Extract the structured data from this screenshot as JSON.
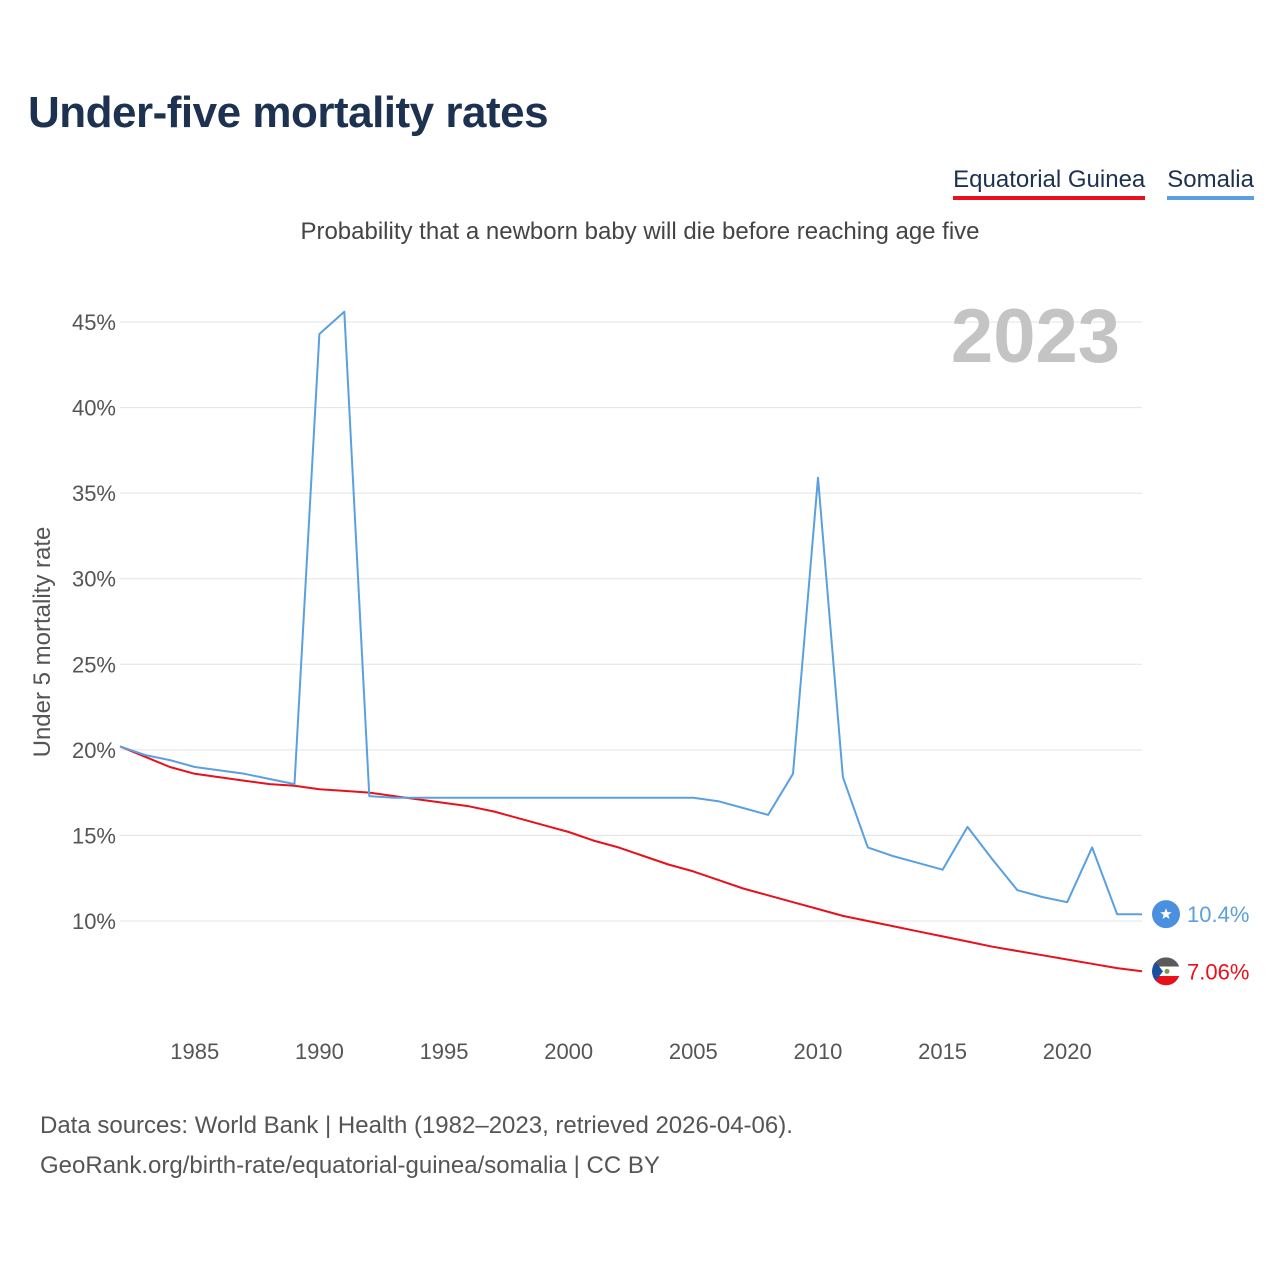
{
  "title": "Under-five mortality rates",
  "subtitle": "Probability that a newborn baby will die before reaching age five",
  "legend": [
    {
      "name": "Equatorial Guinea",
      "color": "#e8101a"
    },
    {
      "name": "Somalia",
      "color": "#5aa0e0"
    }
  ],
  "source": {
    "line1": "Data sources: World Bank | Health (1982–2023, retrieved 2026-04-06).",
    "line2": "GeoRank.org/birth-rate/equatorial-guinea/somalia | CC BY"
  },
  "chart_data": {
    "type": "line",
    "title": "Under-five mortality rates",
    "subtitle": "Probability that a newborn baby will die before reaching age five",
    "ylabel": "Under 5 mortality rate",
    "xlabel": "",
    "year_label": "2023",
    "xlim": [
      1982,
      2023
    ],
    "ylim": [
      5,
      46
    ],
    "y_ticks": [
      10,
      15,
      20,
      25,
      30,
      35,
      40,
      45
    ],
    "y_tick_labels": [
      "10%",
      "15%",
      "20%",
      "25%",
      "30%",
      "35%",
      "40%",
      "45%"
    ],
    "x_ticks": [
      1985,
      1990,
      1995,
      2000,
      2005,
      2010,
      2015,
      2020
    ],
    "x_tick_labels": [
      "1985",
      "1990",
      "1995",
      "2000",
      "2005",
      "2010",
      "2015",
      "2020"
    ],
    "grid": true,
    "x": [
      1982,
      1983,
      1984,
      1985,
      1986,
      1987,
      1988,
      1989,
      1990,
      1991,
      1992,
      1993,
      1994,
      1995,
      1996,
      1997,
      1998,
      1999,
      2000,
      2001,
      2002,
      2003,
      2004,
      2005,
      2006,
      2007,
      2008,
      2009,
      2010,
      2011,
      2012,
      2013,
      2014,
      2015,
      2016,
      2017,
      2018,
      2019,
      2020,
      2021,
      2022,
      2023
    ],
    "series": [
      {
        "name": "Equatorial Guinea",
        "color": "#e8101a",
        "end_label": "7.06%",
        "values": [
          20.2,
          19.6,
          19.0,
          18.6,
          18.4,
          18.2,
          18.0,
          17.9,
          17.7,
          17.6,
          17.5,
          17.3,
          17.1,
          16.9,
          16.7,
          16.4,
          16.0,
          15.6,
          15.2,
          14.7,
          14.3,
          13.8,
          13.3,
          12.9,
          12.4,
          11.9,
          11.5,
          11.1,
          10.7,
          10.3,
          10.0,
          9.7,
          9.4,
          9.1,
          8.8,
          8.5,
          8.25,
          8.0,
          7.75,
          7.5,
          7.25,
          7.06
        ]
      },
      {
        "name": "Somalia",
        "color": "#5aa0e0",
        "end_label": "10.4%",
        "values": [
          20.2,
          19.7,
          19.4,
          19.0,
          18.8,
          18.6,
          18.3,
          18.0,
          44.3,
          45.6,
          17.3,
          17.2,
          17.2,
          17.2,
          17.2,
          17.2,
          17.2,
          17.2,
          17.2,
          17.2,
          17.2,
          17.2,
          17.2,
          17.2,
          17.0,
          16.6,
          16.2,
          18.6,
          35.9,
          18.4,
          14.3,
          13.8,
          13.4,
          13.0,
          15.5,
          13.6,
          11.8,
          11.4,
          11.1,
          14.3,
          10.4,
          10.4
        ]
      }
    ]
  }
}
